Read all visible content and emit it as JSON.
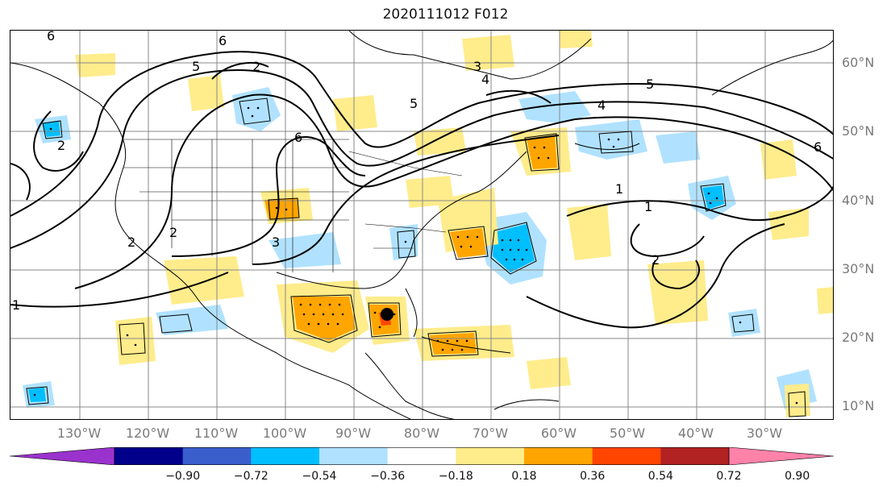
{
  "title": "2020111012 F012",
  "colorbar": {
    "colors": [
      "#9a32cd",
      "#00008b",
      "#3a5fcd",
      "#00bfff",
      "#b0e2ff",
      "#ffffff",
      "#ffec8b",
      "#ffa500",
      "#ff4500",
      "#b22222",
      "#ff82ab"
    ],
    "tick_labels": [
      "−0.90",
      "−0.72",
      "−0.54",
      "−0.36",
      "−0.18",
      "0.18",
      "0.36",
      "0.54",
      "0.72",
      "0.90"
    ]
  },
  "axes": {
    "lat_labels": [
      "60°N",
      "50°N",
      "40°N",
      "30°N",
      "20°N",
      "10°N"
    ],
    "lon_labels": [
      "130°W",
      "120°W",
      "110°W",
      "100°W",
      "90°W",
      "80°W",
      "70°W",
      "60°W",
      "50°W",
      "40°W",
      "30°W"
    ]
  },
  "contour_labels": [
    {
      "text": "6"
    },
    {
      "text": "6"
    },
    {
      "text": "5"
    },
    {
      "text": "2"
    },
    {
      "text": "6"
    },
    {
      "text": "2"
    },
    {
      "text": "3"
    },
    {
      "text": "4"
    },
    {
      "text": "5"
    },
    {
      "text": "4"
    },
    {
      "text": "5"
    },
    {
      "text": "6"
    },
    {
      "text": "1"
    },
    {
      "text": "1"
    },
    {
      "text": "2"
    },
    {
      "text": "2"
    },
    {
      "text": "2"
    },
    {
      "text": "3"
    },
    {
      "text": "1"
    }
  ],
  "colors": {
    "land_line": "#000000",
    "contour": "#000000",
    "grid": "#888888",
    "marker": "#000000"
  }
}
